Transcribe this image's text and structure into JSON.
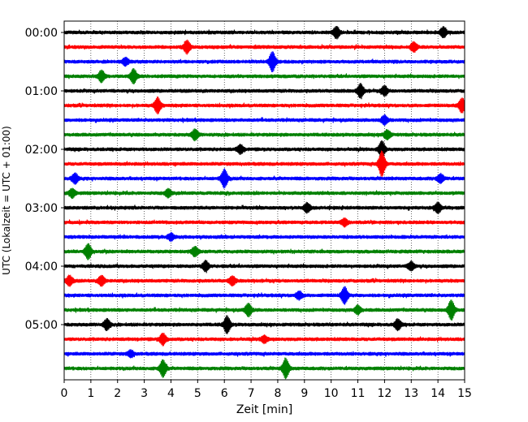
{
  "chart_data": {
    "type": "line",
    "title": "",
    "xlabel": "Zeit  [min]",
    "ylabel": "UTC (Lokalzeit = UTC + 01:00)",
    "xlim": [
      0,
      15
    ],
    "x_ticks": [
      "0",
      "1",
      "2",
      "3",
      "4",
      "5",
      "6",
      "7",
      "8",
      "9",
      "10",
      "11",
      "12",
      "13",
      "14",
      "15"
    ],
    "y_ticks": [
      {
        "label": "00:00",
        "trace": 0
      },
      {
        "label": "01:00",
        "trace": 4
      },
      {
        "label": "02:00",
        "trace": 8
      },
      {
        "label": "03:00",
        "trace": 12
      },
      {
        "label": "04:00",
        "trace": 16
      },
      {
        "label": "05:00",
        "trace": 20
      }
    ],
    "vertical_grid": true,
    "grid_style": "dotted",
    "trace_colors": [
      "#000000",
      "#ff0000",
      "#0000ff",
      "#008000"
    ],
    "trace_count": 24,
    "trace_interval_minutes": 15,
    "events": [
      {
        "trace": 0,
        "t": 10.2,
        "amp": 1.6
      },
      {
        "trace": 0,
        "t": 14.2,
        "amp": 1.4
      },
      {
        "trace": 1,
        "t": 4.6,
        "amp": 1.8
      },
      {
        "trace": 1,
        "t": 13.1,
        "amp": 1.3
      },
      {
        "trace": 2,
        "t": 7.8,
        "amp": 2.8
      },
      {
        "trace": 2,
        "t": 2.3,
        "amp": 1.0
      },
      {
        "trace": 3,
        "t": 1.4,
        "amp": 1.6
      },
      {
        "trace": 3,
        "t": 2.6,
        "amp": 2.0
      },
      {
        "trace": 4,
        "t": 11.1,
        "amp": 1.9
      },
      {
        "trace": 4,
        "t": 12.0,
        "amp": 1.3
      },
      {
        "trace": 5,
        "t": 3.5,
        "amp": 2.2
      },
      {
        "trace": 5,
        "t": 14.9,
        "amp": 2.0
      },
      {
        "trace": 6,
        "t": 12.0,
        "amp": 1.3
      },
      {
        "trace": 7,
        "t": 4.9,
        "amp": 1.5
      },
      {
        "trace": 7,
        "t": 12.1,
        "amp": 1.3
      },
      {
        "trace": 8,
        "t": 6.6,
        "amp": 1.2
      },
      {
        "trace": 8,
        "t": 11.9,
        "amp": 2.3
      },
      {
        "trace": 9,
        "t": 11.9,
        "amp": 3.6
      },
      {
        "trace": 10,
        "t": 0.4,
        "amp": 1.4
      },
      {
        "trace": 10,
        "t": 6.0,
        "amp": 2.6
      },
      {
        "trace": 10,
        "t": 14.1,
        "amp": 1.2
      },
      {
        "trace": 11,
        "t": 0.3,
        "amp": 1.2
      },
      {
        "trace": 11,
        "t": 3.9,
        "amp": 1.1
      },
      {
        "trace": 12,
        "t": 9.1,
        "amp": 1.3
      },
      {
        "trace": 12,
        "t": 14.0,
        "amp": 1.4
      },
      {
        "trace": 13,
        "t": 10.5,
        "amp": 1.0
      },
      {
        "trace": 14,
        "t": 4.0,
        "amp": 0.9
      },
      {
        "trace": 15,
        "t": 0.9,
        "amp": 2.2
      },
      {
        "trace": 15,
        "t": 4.9,
        "amp": 1.3
      },
      {
        "trace": 16,
        "t": 5.3,
        "amp": 1.4
      },
      {
        "trace": 16,
        "t": 13.0,
        "amp": 1.2
      },
      {
        "trace": 17,
        "t": 0.2,
        "amp": 1.4
      },
      {
        "trace": 17,
        "t": 1.4,
        "amp": 1.4
      },
      {
        "trace": 17,
        "t": 6.3,
        "amp": 1.2
      },
      {
        "trace": 18,
        "t": 8.8,
        "amp": 1.1
      },
      {
        "trace": 18,
        "t": 10.5,
        "amp": 2.4
      },
      {
        "trace": 19,
        "t": 6.9,
        "amp": 1.8
      },
      {
        "trace": 19,
        "t": 14.5,
        "amp": 2.8
      },
      {
        "trace": 19,
        "t": 11.0,
        "amp": 1.2
      },
      {
        "trace": 20,
        "t": 1.6,
        "amp": 1.5
      },
      {
        "trace": 20,
        "t": 6.1,
        "amp": 2.4
      },
      {
        "trace": 20,
        "t": 12.5,
        "amp": 1.5
      },
      {
        "trace": 21,
        "t": 3.7,
        "amp": 1.6
      },
      {
        "trace": 21,
        "t": 7.5,
        "amp": 1.0
      },
      {
        "trace": 22,
        "t": 2.5,
        "amp": 0.9
      },
      {
        "trace": 23,
        "t": 3.7,
        "amp": 2.4
      },
      {
        "trace": 23,
        "t": 8.3,
        "amp": 2.8
      }
    ]
  }
}
